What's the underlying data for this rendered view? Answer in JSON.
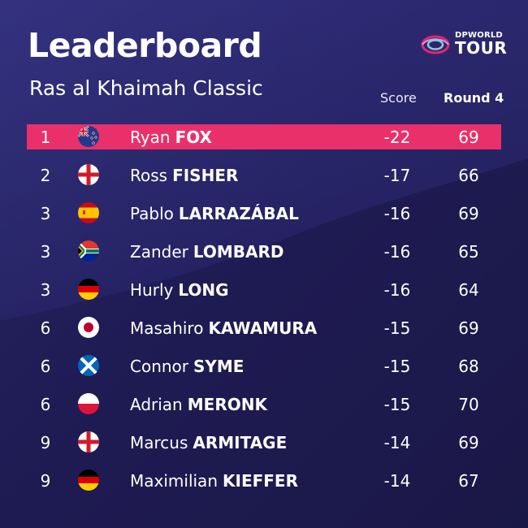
{
  "header": {
    "title": "Leaderboard",
    "subtitle": "Ras al Khaimah Classic",
    "logo_top": "DPWORLD",
    "logo_bottom": "TOUR"
  },
  "columns": {
    "score": "Score",
    "round": "Round 4"
  },
  "colors": {
    "background": "#1e1a4e",
    "background_light": "#2b2868",
    "leader_row": "#e9306b",
    "logo_accent": "#e5236f"
  },
  "rows": [
    {
      "pos": "1",
      "flag": "new-zealand",
      "first": "Ryan",
      "last": "FOX",
      "score": "-22",
      "round": "69"
    },
    {
      "pos": "2",
      "flag": "england",
      "first": "Ross",
      "last": "FISHER",
      "score": "-17",
      "round": "66"
    },
    {
      "pos": "3",
      "flag": "spain",
      "first": "Pablo",
      "last": "LARRAZÁBAL",
      "score": "-16",
      "round": "69"
    },
    {
      "pos": "3",
      "flag": "south-africa",
      "first": "Zander",
      "last": "LOMBARD",
      "score": "-16",
      "round": "65"
    },
    {
      "pos": "3",
      "flag": "germany",
      "first": "Hurly",
      "last": "LONG",
      "score": "-16",
      "round": "64"
    },
    {
      "pos": "6",
      "flag": "japan",
      "first": "Masahiro",
      "last": "KAWAMURA",
      "score": "-15",
      "round": "69"
    },
    {
      "pos": "6",
      "flag": "scotland",
      "first": "Connor",
      "last": "SYME",
      "score": "-15",
      "round": "68"
    },
    {
      "pos": "6",
      "flag": "poland",
      "first": "Adrian",
      "last": "MERONK",
      "score": "-15",
      "round": "70"
    },
    {
      "pos": "9",
      "flag": "england",
      "first": "Marcus",
      "last": "ARMITAGE",
      "score": "-14",
      "round": "69"
    },
    {
      "pos": "9",
      "flag": "germany",
      "first": "Maximilian",
      "last": "KIEFFER",
      "score": "-14",
      "round": "67"
    }
  ]
}
